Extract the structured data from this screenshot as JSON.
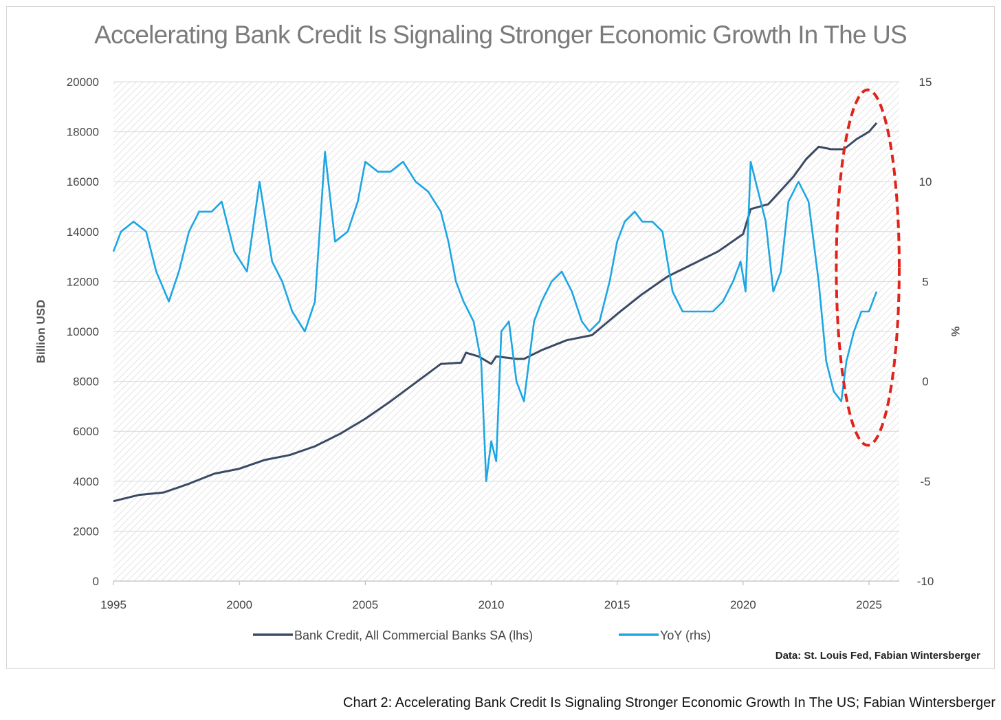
{
  "chart_data": {
    "type": "line",
    "title": "Accelerating Bank Credit Is Signaling Stronger Economic Growth In The US",
    "x_ticks": [
      "1995",
      "2000",
      "2005",
      "2010",
      "2015",
      "2020",
      "2025"
    ],
    "xlim": [
      1995,
      2026.2
    ],
    "y_left": {
      "label": "Billion USD",
      "ticks": [
        "20000",
        "18000",
        "16000",
        "14000",
        "12000",
        "10000",
        "8000",
        "6000",
        "4000",
        "2000",
        "0"
      ],
      "lim": [
        0,
        20000
      ]
    },
    "y_right": {
      "label": "%",
      "ticks": [
        "15",
        "10",
        "5",
        "0",
        "-5",
        "-10"
      ],
      "lim": [
        -10,
        15
      ]
    },
    "series": [
      {
        "name": "Bank Credit, All Commercial Banks SA (lhs)",
        "axis": "left",
        "color": "#3b4a63",
        "x": [
          1995,
          1996,
          1997,
          1998,
          1999,
          2000,
          2001,
          2002,
          2003,
          2004,
          2005,
          2006,
          2007,
          2008,
          2008.8,
          2009,
          2009.5,
          2010,
          2010.2,
          2011,
          2011.3,
          2012,
          2013,
          2014,
          2015,
          2016,
          2017,
          2018,
          2019,
          2020,
          2020.3,
          2021,
          2022,
          2022.5,
          2023,
          2023.5,
          2024,
          2024.5,
          2025,
          2025.3
        ],
        "y": [
          3200,
          3450,
          3550,
          3900,
          4300,
          4500,
          4850,
          5050,
          5400,
          5900,
          6500,
          7200,
          7950,
          8700,
          8750,
          9150,
          9000,
          8700,
          9000,
          8900,
          8900,
          9250,
          9650,
          9850,
          10700,
          11500,
          12200,
          12700,
          13200,
          13900,
          14900,
          15100,
          16200,
          16900,
          17400,
          17300,
          17300,
          17700,
          18000,
          18350
        ]
      },
      {
        "name": "YoY (rhs)",
        "axis": "right",
        "color": "#1ca6e3",
        "x": [
          1995,
          1995.3,
          1995.8,
          1996.3,
          1996.7,
          1997.2,
          1997.6,
          1998.0,
          1998.4,
          1998.9,
          1999.3,
          1999.8,
          2000.3,
          2000.8,
          2001.3,
          2001.7,
          2002.1,
          2002.6,
          2003.0,
          2003.4,
          2003.8,
          2004.3,
          2004.7,
          2005.0,
          2005.5,
          2006.0,
          2006.5,
          2007.0,
          2007.5,
          2008.0,
          2008.3,
          2008.6,
          2008.9,
          2009.3,
          2009.6,
          2009.8,
          2010.0,
          2010.2,
          2010.4,
          2010.7,
          2011.0,
          2011.3,
          2011.7,
          2012.0,
          2012.4,
          2012.8,
          2013.2,
          2013.6,
          2013.9,
          2014.3,
          2014.7,
          2015.0,
          2015.3,
          2015.7,
          2016.0,
          2016.4,
          2016.8,
          2017.2,
          2017.6,
          2018.0,
          2018.4,
          2018.8,
          2019.2,
          2019.6,
          2019.9,
          2020.1,
          2020.3,
          2020.6,
          2020.9,
          2021.2,
          2021.5,
          2021.8,
          2022.2,
          2022.6,
          2023.0,
          2023.3,
          2023.6,
          2023.9,
          2024.1,
          2024.4,
          2024.7,
          2025.0,
          2025.3
        ],
        "y": [
          6.5,
          7.5,
          8.0,
          7.5,
          5.5,
          4.0,
          5.5,
          7.5,
          8.5,
          8.5,
          9.0,
          6.5,
          5.5,
          10.0,
          6.0,
          5.0,
          3.5,
          2.5,
          4.0,
          11.5,
          7.0,
          7.5,
          9.0,
          11.0,
          10.5,
          10.5,
          11.0,
          10.0,
          9.5,
          8.5,
          7.0,
          5.0,
          4.0,
          3.0,
          1.0,
          -5.0,
          -3.0,
          -4.0,
          2.5,
          3.0,
          0.0,
          -1.0,
          3.0,
          4.0,
          5.0,
          5.5,
          4.5,
          3.0,
          2.5,
          3.0,
          5.0,
          7.0,
          8.0,
          8.5,
          8.0,
          8.0,
          7.5,
          4.5,
          3.5,
          3.5,
          3.5,
          3.5,
          4.0,
          5.0,
          6.0,
          4.5,
          11.0,
          9.5,
          8.0,
          4.5,
          5.5,
          9.0,
          10.0,
          9.0,
          5.0,
          1.0,
          -0.5,
          -1.0,
          1.0,
          2.5,
          3.5,
          3.5,
          4.5
        ]
      }
    ],
    "annotations": [
      {
        "type": "ellipse",
        "style": "dashed",
        "color": "#e0231b",
        "x_range": [
          2023.7,
          2026.2
        ],
        "y_right_range": [
          -3.2,
          14.6
        ]
      }
    ],
    "legend": {
      "placement": "bottom"
    },
    "grid": "diagonal hatch background",
    "source": "Data: St. Louis Fed, Fabian Wintersberger",
    "caption": "Chart 2: Accelerating Bank Credit Is Signaling Stronger Economic Growth In The US; Fabian Wintersberger"
  }
}
